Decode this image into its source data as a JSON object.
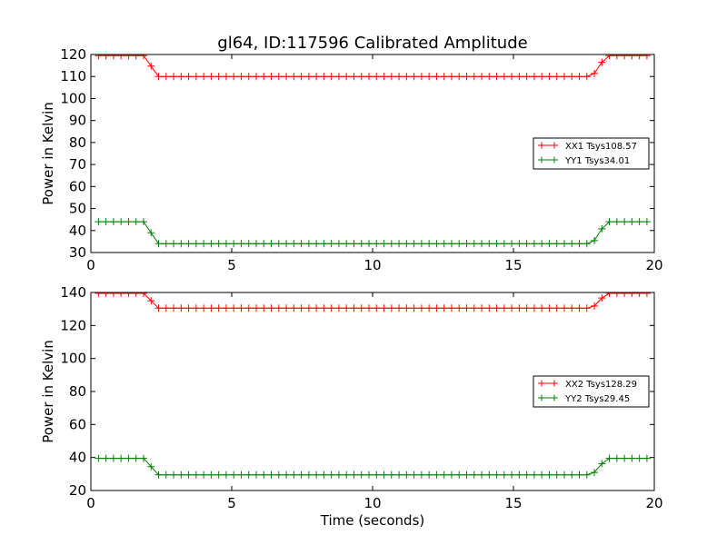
{
  "chart_data": [
    {
      "type": "line",
      "title": "gl64, ID:117596 Calibrated Amplitude",
      "xlabel": "",
      "ylabel": "Power in Kelvin",
      "xlim": [
        0,
        20
      ],
      "ylim": [
        30,
        120
      ],
      "xticks": [
        0,
        5,
        10,
        15,
        20
      ],
      "yticks": [
        30,
        40,
        50,
        60,
        70,
        80,
        90,
        100,
        110,
        120
      ],
      "grid": false,
      "legend_position": "right",
      "series": [
        {
          "name": "XX1 Tsys108.57",
          "color": "#ff0000",
          "high": 119.5,
          "low": 110,
          "drop_start": 1.87,
          "drop_end": 2.4,
          "rise_start": 17.8,
          "rise_end": 18.3,
          "x_start": 0.27,
          "x_step": 0.2667,
          "count": 74
        },
        {
          "name": "YY1 Tsys34.01",
          "color": "#008000",
          "high": 44,
          "low": 34,
          "drop_start": 1.87,
          "drop_end": 2.4,
          "rise_start": 17.8,
          "rise_end": 18.3,
          "x_start": 0.27,
          "x_step": 0.2667,
          "count": 74
        }
      ]
    },
    {
      "type": "line",
      "title": "",
      "xlabel": "Time (seconds)",
      "ylabel": "Power in Kelvin",
      "xlim": [
        0,
        20
      ],
      "ylim": [
        20,
        140
      ],
      "xticks": [
        0,
        5,
        10,
        15,
        20
      ],
      "yticks": [
        20,
        40,
        60,
        80,
        100,
        120,
        140
      ],
      "grid": false,
      "legend_position": "right",
      "series": [
        {
          "name": "XX2 Tsys128.29",
          "color": "#ff0000",
          "high": 139.5,
          "low": 130.5,
          "drop_start": 1.87,
          "drop_end": 2.4,
          "rise_start": 17.8,
          "rise_end": 18.3,
          "x_start": 0.27,
          "x_step": 0.2667,
          "count": 74
        },
        {
          "name": "YY2 Tsys29.45",
          "color": "#008000",
          "high": 39.5,
          "low": 29.5,
          "drop_start": 1.87,
          "drop_end": 2.4,
          "rise_start": 17.8,
          "rise_end": 18.3,
          "x_start": 0.27,
          "x_step": 0.2667,
          "count": 74
        }
      ]
    }
  ]
}
